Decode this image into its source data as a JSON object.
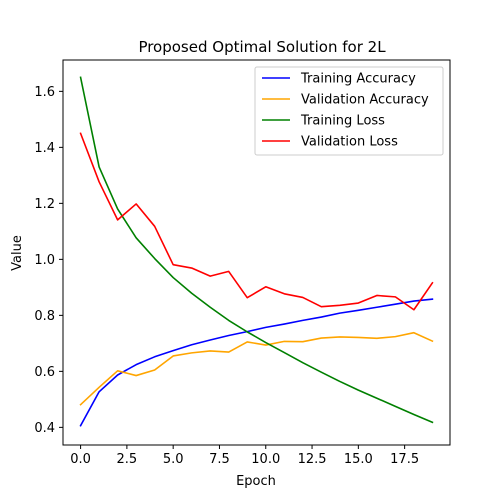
{
  "chart_data": {
    "type": "line",
    "title": "Proposed Optimal Solution for 2L",
    "xlabel": "Epoch",
    "ylabel": "Value",
    "xlim": [
      -0.95,
      19.95
    ],
    "ylim": [
      0.337,
      1.712
    ],
    "x": [
      0,
      1,
      2,
      3,
      4,
      5,
      6,
      7,
      8,
      9,
      10,
      11,
      12,
      13,
      14,
      15,
      16,
      17,
      18,
      19
    ],
    "x_ticks": [
      0.0,
      2.5,
      5.0,
      7.5,
      10.0,
      12.5,
      15.0,
      17.5
    ],
    "x_tick_labels": [
      "0.0",
      "2.5",
      "5.0",
      "7.5",
      "10.0",
      "12.5",
      "15.0",
      "17.5"
    ],
    "y_ticks": [
      0.4,
      0.6,
      0.8,
      1.0,
      1.2,
      1.4,
      1.6
    ],
    "y_tick_labels": [
      "0.4",
      "0.6",
      "0.8",
      "1.0",
      "1.2",
      "1.4",
      "1.6"
    ],
    "grid": false,
    "legend_position": "upper right",
    "series": [
      {
        "name": "Training Accuracy",
        "color": "#0000ff",
        "values": [
          0.406,
          0.527,
          0.587,
          0.624,
          0.652,
          0.674,
          0.695,
          0.712,
          0.728,
          0.742,
          0.757,
          0.769,
          0.782,
          0.794,
          0.808,
          0.818,
          0.829,
          0.84,
          0.851,
          0.858
        ]
      },
      {
        "name": "Validation Accuracy",
        "color": "#ffa500",
        "values": [
          0.481,
          0.543,
          0.602,
          0.585,
          0.605,
          0.655,
          0.666,
          0.673,
          0.669,
          0.705,
          0.694,
          0.707,
          0.706,
          0.719,
          0.723,
          0.721,
          0.718,
          0.724,
          0.738,
          0.708
        ]
      },
      {
        "name": "Training Loss",
        "color": "#008000",
        "values": [
          1.65,
          1.33,
          1.18,
          1.077,
          1.003,
          0.935,
          0.879,
          0.829,
          0.782,
          0.741,
          0.703,
          0.667,
          0.631,
          0.597,
          0.564,
          0.533,
          0.504,
          0.475,
          0.446,
          0.418
        ]
      },
      {
        "name": "Validation Loss",
        "color": "#ff0000",
        "values": [
          1.45,
          1.277,
          1.141,
          1.198,
          1.118,
          0.981,
          0.969,
          0.94,
          0.957,
          0.863,
          0.902,
          0.877,
          0.864,
          0.831,
          0.836,
          0.844,
          0.871,
          0.866,
          0.82,
          0.916
        ]
      }
    ]
  }
}
